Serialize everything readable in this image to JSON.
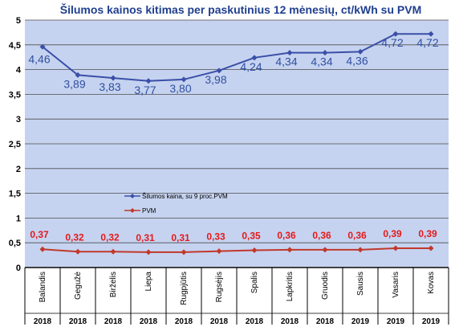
{
  "chart_data": {
    "type": "line",
    "title": "Šilumos kainos kitimas per paskutinius 12 mėnesių, ct/kWh su PVM",
    "xlabel": "",
    "ylabel": "",
    "ylim": [
      0,
      5
    ],
    "y_ticks": [
      "0",
      "0,5",
      "1",
      "1,5",
      "2",
      "2,5",
      "3",
      "3,5",
      "4",
      "4,5",
      "5"
    ],
    "grid": true,
    "legend_position": "center-left",
    "categories": [
      "Balandis",
      "Gegužė",
      "Birželis",
      "Liepa",
      "Rugpjūtis",
      "Rugsėjis",
      "Spalis",
      "Lapkritis",
      "Gruodis",
      "Sausis",
      "Vasaris",
      "Kovas"
    ],
    "years": [
      "2018",
      "2018",
      "2018",
      "2018",
      "2018",
      "2018",
      "2018",
      "2018",
      "2018",
      "2019",
      "2019",
      "2019"
    ],
    "series": [
      {
        "name": "Šilumos kaina, su 9 proc.PVM",
        "color": "#3a4fa8",
        "values": [
          4.46,
          3.89,
          3.83,
          3.77,
          3.8,
          3.98,
          4.24,
          4.34,
          4.34,
          4.36,
          4.72,
          4.72
        ],
        "labels": [
          "4,46",
          "3,89",
          "3,83",
          "3,77",
          "3,80",
          "3,98",
          "4,24",
          "4,34",
          "4,34",
          "4,36",
          "4,72",
          "4,72"
        ]
      },
      {
        "name": "PVM",
        "color": "#c0392b",
        "label_color": "#e31a1c",
        "values": [
          0.37,
          0.32,
          0.32,
          0.31,
          0.31,
          0.33,
          0.35,
          0.36,
          0.36,
          0.36,
          0.39,
          0.39
        ],
        "labels": [
          "0,37",
          "0,32",
          "0,32",
          "0,31",
          "0,31",
          "0,33",
          "0,35",
          "0,36",
          "0,36",
          "0,36",
          "0,39",
          "0,39"
        ]
      }
    ]
  }
}
